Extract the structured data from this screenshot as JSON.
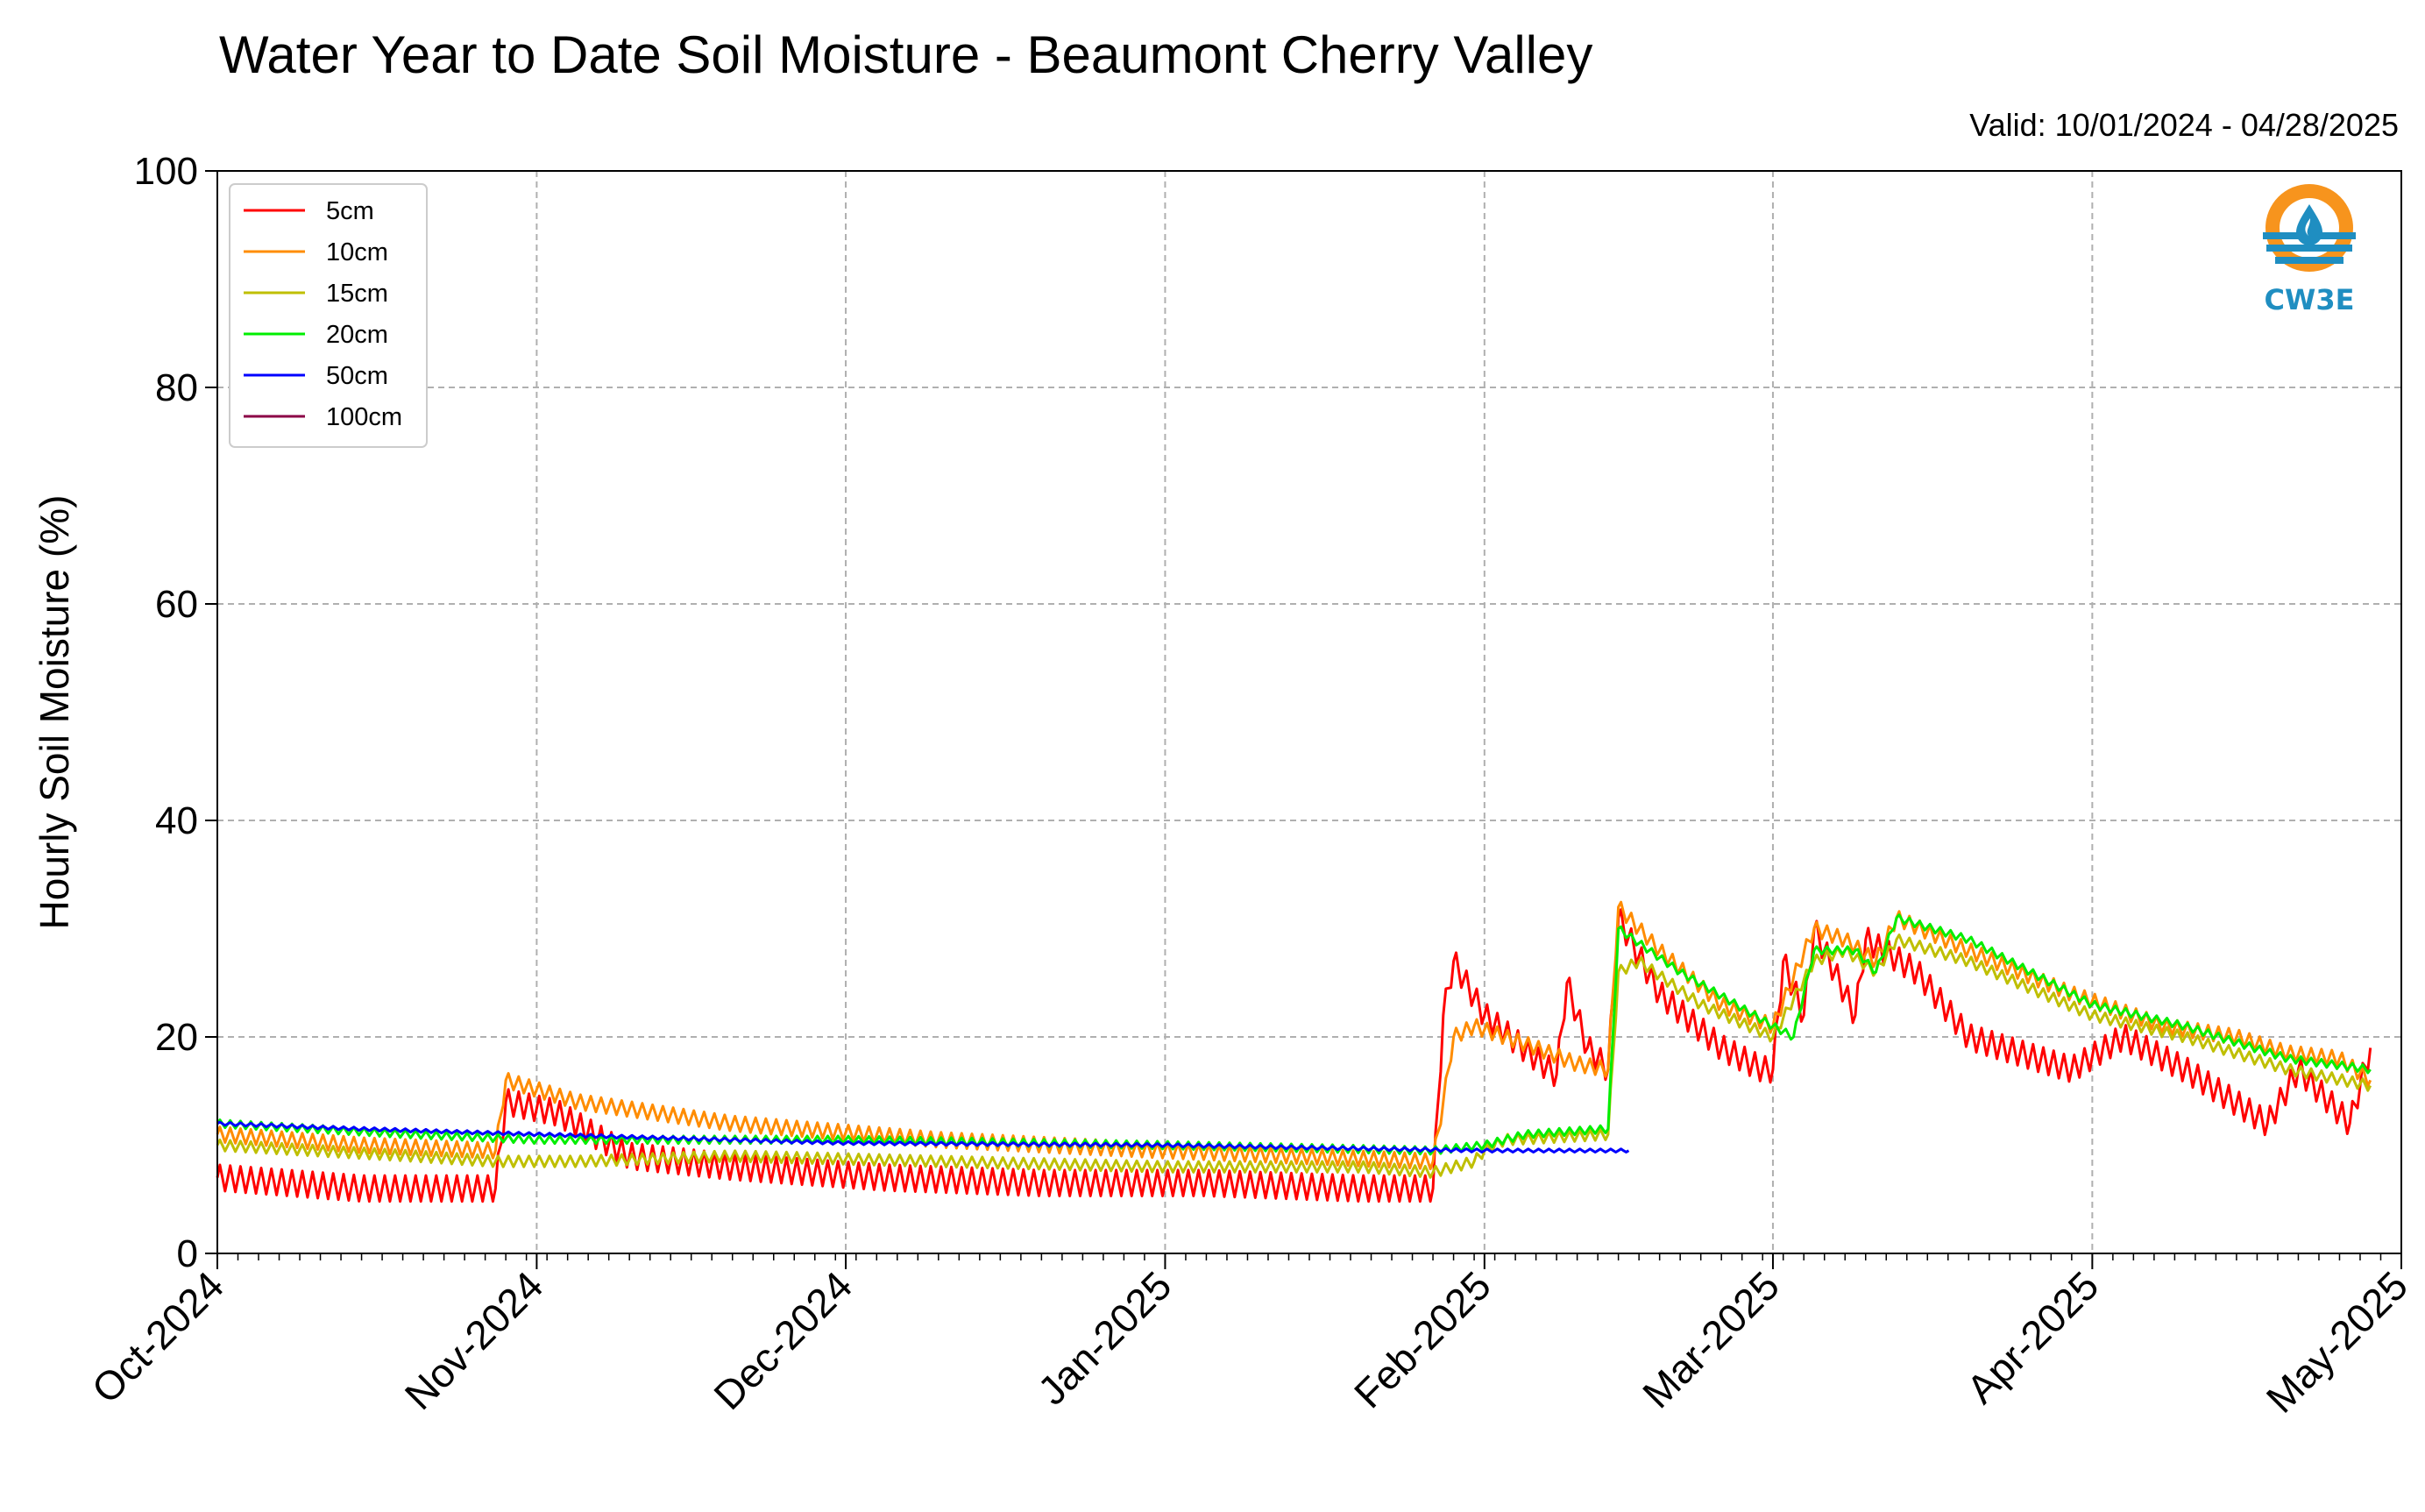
{
  "colors": {
    "axis": "#000000",
    "grid": "#b0b0b0",
    "logo_orange": "#f7941d",
    "logo_blue": "#1f8ec1"
  },
  "logo": {
    "text": "CW3E",
    "icon": "water-drop-icon"
  },
  "chart_data": {
    "type": "line",
    "title": "Water Year to Date Soil Moisture - Beaumont Cherry Valley",
    "subtitle": "Valid: 10/01/2024 - 04/28/2025",
    "xlabel": "",
    "ylabel": "Hourly Soil Moisture (%)",
    "ylim": [
      0,
      100
    ],
    "xlim": [
      "2024-10-01",
      "2025-05-01"
    ],
    "yticks": [
      0,
      20,
      40,
      60,
      80,
      100
    ],
    "xticks": [
      {
        "date": "2024-10-01",
        "label": "Oct-2024"
      },
      {
        "date": "2024-11-01",
        "label": "Nov-2024"
      },
      {
        "date": "2024-12-01",
        "label": "Dec-2024"
      },
      {
        "date": "2025-01-01",
        "label": "Jan-2025"
      },
      {
        "date": "2025-02-01",
        "label": "Feb-2025"
      },
      {
        "date": "2025-03-01",
        "label": "Mar-2025"
      },
      {
        "date": "2025-04-01",
        "label": "Apr-2025"
      },
      {
        "date": "2025-05-01",
        "label": "May-2025"
      }
    ],
    "grid": true,
    "legend_position": "top-left",
    "series": [
      {
        "name": "5cm",
        "color": "#ff0000",
        "points": [
          [
            "2024-10-01",
            7
          ],
          [
            "2024-10-15",
            6
          ],
          [
            "2024-10-28",
            6
          ],
          [
            "2024-10-29",
            14
          ],
          [
            "2024-11-03",
            13
          ],
          [
            "2024-11-10",
            9
          ],
          [
            "2024-11-20",
            8
          ],
          [
            "2024-12-05",
            7
          ],
          [
            "2024-12-20",
            6.5
          ],
          [
            "2025-01-05",
            6.5
          ],
          [
            "2025-01-20",
            6
          ],
          [
            "2025-01-27",
            6
          ],
          [
            "2025-01-28",
            22
          ],
          [
            "2025-01-29",
            27
          ],
          [
            "2025-02-01",
            22
          ],
          [
            "2025-02-06",
            18
          ],
          [
            "2025-02-08",
            16.5
          ],
          [
            "2025-02-09",
            25
          ],
          [
            "2025-02-11",
            19
          ],
          [
            "2025-02-12",
            18
          ],
          [
            "2025-02-13",
            17
          ],
          [
            "2025-02-14",
            31
          ],
          [
            "2025-02-18",
            24
          ],
          [
            "2025-02-24",
            19
          ],
          [
            "2025-02-28",
            17
          ],
          [
            "2025-03-01",
            17
          ],
          [
            "2025-03-02",
            27
          ],
          [
            "2025-03-04",
            22
          ],
          [
            "2025-03-05",
            30
          ],
          [
            "2025-03-09",
            22
          ],
          [
            "2025-03-10",
            29
          ],
          [
            "2025-03-15",
            26
          ],
          [
            "2025-03-20",
            20
          ],
          [
            "2025-03-30",
            17
          ],
          [
            "2025-04-04",
            20
          ],
          [
            "2025-04-10",
            17
          ],
          [
            "2025-04-18",
            12
          ],
          [
            "2025-04-21",
            17
          ],
          [
            "2025-04-26",
            12
          ],
          [
            "2025-04-28",
            19
          ]
        ]
      },
      {
        "name": "10cm",
        "color": "#ff8c00",
        "points": [
          [
            "2024-10-01",
            11
          ],
          [
            "2024-10-15",
            10
          ],
          [
            "2024-10-28",
            9.5
          ],
          [
            "2024-10-29",
            16
          ],
          [
            "2024-11-05",
            14
          ],
          [
            "2024-11-20",
            12
          ],
          [
            "2024-12-10",
            10.5
          ],
          [
            "2025-01-01",
            9.5
          ],
          [
            "2025-01-27",
            8.5
          ],
          [
            "2025-01-28",
            14
          ],
          [
            "2025-01-29",
            20
          ],
          [
            "2025-01-31",
            21
          ],
          [
            "2025-02-06",
            19
          ],
          [
            "2025-02-10",
            17.5
          ],
          [
            "2025-02-13",
            17
          ],
          [
            "2025-02-14",
            32
          ],
          [
            "2025-02-18",
            28
          ],
          [
            "2025-02-24",
            23
          ],
          [
            "2025-03-01",
            21
          ],
          [
            "2025-03-05",
            30
          ],
          [
            "2025-03-08",
            29
          ],
          [
            "2025-03-11",
            27
          ],
          [
            "2025-03-13",
            31
          ],
          [
            "2025-03-20",
            28
          ],
          [
            "2025-03-30",
            24
          ],
          [
            "2025-04-08",
            21
          ],
          [
            "2025-04-15",
            20
          ],
          [
            "2025-04-20",
            18.5
          ],
          [
            "2025-04-25",
            18
          ],
          [
            "2025-04-28",
            16
          ]
        ]
      },
      {
        "name": "15cm",
        "color": "#bfbf00",
        "points": [
          [
            "2024-10-01",
            10
          ],
          [
            "2024-10-20",
            9
          ],
          [
            "2024-10-28",
            8.5
          ],
          [
            "2024-11-05",
            8.5
          ],
          [
            "2024-11-20",
            9
          ],
          [
            "2024-12-10",
            8.5
          ],
          [
            "2025-01-01",
            8
          ],
          [
            "2025-01-20",
            8
          ],
          [
            "2025-01-27",
            7.5
          ],
          [
            "2025-01-31",
            8.5
          ],
          [
            "2025-02-01",
            9.5
          ],
          [
            "2025-02-03",
            10.5
          ],
          [
            "2025-02-13",
            11
          ],
          [
            "2025-02-14",
            26
          ],
          [
            "2025-02-16",
            27
          ],
          [
            "2025-02-22",
            23
          ],
          [
            "2025-03-01",
            20
          ],
          [
            "2025-03-05",
            27
          ],
          [
            "2025-03-08",
            28
          ],
          [
            "2025-03-11",
            26
          ],
          [
            "2025-03-13",
            29
          ],
          [
            "2025-03-20",
            27
          ],
          [
            "2025-04-01",
            22
          ],
          [
            "2025-04-10",
            20
          ],
          [
            "2025-04-20",
            17
          ],
          [
            "2025-04-28",
            15.5
          ]
        ]
      },
      {
        "name": "20cm",
        "color": "#00ee00",
        "points": [
          [
            "2024-10-01",
            12
          ],
          [
            "2024-10-20",
            11
          ],
          [
            "2024-11-01",
            10.5
          ],
          [
            "2024-12-01",
            10.5
          ],
          [
            "2025-01-01",
            10
          ],
          [
            "2025-01-27",
            9.5
          ],
          [
            "2025-02-01",
            10
          ],
          [
            "2025-02-05",
            11
          ],
          [
            "2025-02-13",
            11.5
          ],
          [
            "2025-02-14",
            30
          ],
          [
            "2025-02-20",
            26
          ],
          [
            "2025-03-01",
            21
          ],
          [
            "2025-03-03",
            20
          ],
          [
            "2025-03-05",
            28
          ],
          [
            "2025-03-09",
            28
          ],
          [
            "2025-03-11",
            26
          ],
          [
            "2025-03-13",
            31
          ],
          [
            "2025-03-20",
            29
          ],
          [
            "2025-04-01",
            23
          ],
          [
            "2025-04-10",
            21
          ],
          [
            "2025-04-20",
            18
          ],
          [
            "2025-04-28",
            17
          ]
        ]
      },
      {
        "name": "50cm",
        "color": "#0000ff",
        "points": [
          [
            "2024-10-01",
            12
          ],
          [
            "2024-10-15",
            11.5
          ],
          [
            "2024-11-01",
            11
          ],
          [
            "2024-12-01",
            10.2
          ],
          [
            "2025-01-01",
            10
          ],
          [
            "2025-02-01",
            9.5
          ],
          [
            "2025-02-15",
            9.5
          ]
        ]
      },
      {
        "name": "100cm",
        "color": "#8b0046",
        "points": []
      }
    ]
  }
}
